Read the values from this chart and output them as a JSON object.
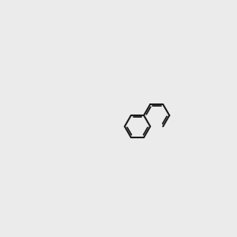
{
  "bg_color": "#ebebeb",
  "bond_color": "#1a1a1a",
  "double_bond_color": "#1a1a1a",
  "N_color": "#0000cc",
  "O_color": "#cc0000",
  "H_color": "#4a9090",
  "lw": 1.5,
  "dlw": 1.3
}
